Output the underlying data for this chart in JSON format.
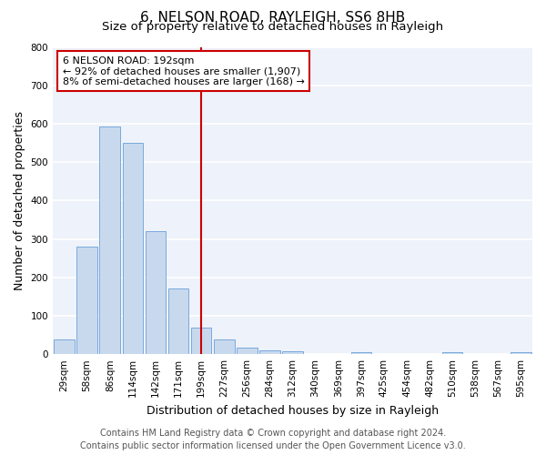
{
  "title": "6, NELSON ROAD, RAYLEIGH, SS6 8HB",
  "subtitle": "Size of property relative to detached houses in Rayleigh",
  "xlabel": "Distribution of detached houses by size in Rayleigh",
  "ylabel": "Number of detached properties",
  "bin_labels": [
    "29sqm",
    "58sqm",
    "86sqm",
    "114sqm",
    "142sqm",
    "171sqm",
    "199sqm",
    "227sqm",
    "256sqm",
    "284sqm",
    "312sqm",
    "340sqm",
    "369sqm",
    "397sqm",
    "425sqm",
    "454sqm",
    "482sqm",
    "510sqm",
    "538sqm",
    "567sqm",
    "595sqm"
  ],
  "bar_values": [
    38,
    280,
    593,
    549,
    320,
    170,
    68,
    38,
    18,
    10,
    8,
    0,
    0,
    5,
    0,
    0,
    0,
    6,
    0,
    0,
    6
  ],
  "bar_color": "#c8d9ee",
  "bar_edge_color": "#6a9fd8",
  "vline_x_index": 6,
  "vline_color": "#cc0000",
  "annotation_title": "6 NELSON ROAD: 192sqm",
  "annotation_line1": "← 92% of detached houses are smaller (1,907)",
  "annotation_line2": "8% of semi-detached houses are larger (168) →",
  "annotation_box_facecolor": "#ffffff",
  "annotation_box_edgecolor": "#cc0000",
  "ylim": [
    0,
    800
  ],
  "yticks": [
    0,
    100,
    200,
    300,
    400,
    500,
    600,
    700,
    800
  ],
  "footer_line1": "Contains HM Land Registry data © Crown copyright and database right 2024.",
  "footer_line2": "Contains public sector information licensed under the Open Government Licence v3.0.",
  "bg_color": "#eef2fa",
  "grid_color": "#ffffff",
  "fig_bg_color": "#ffffff",
  "title_fontsize": 11,
  "subtitle_fontsize": 9.5,
  "axis_label_fontsize": 9,
  "tick_fontsize": 7.5,
  "annotation_fontsize": 8,
  "footer_fontsize": 7
}
